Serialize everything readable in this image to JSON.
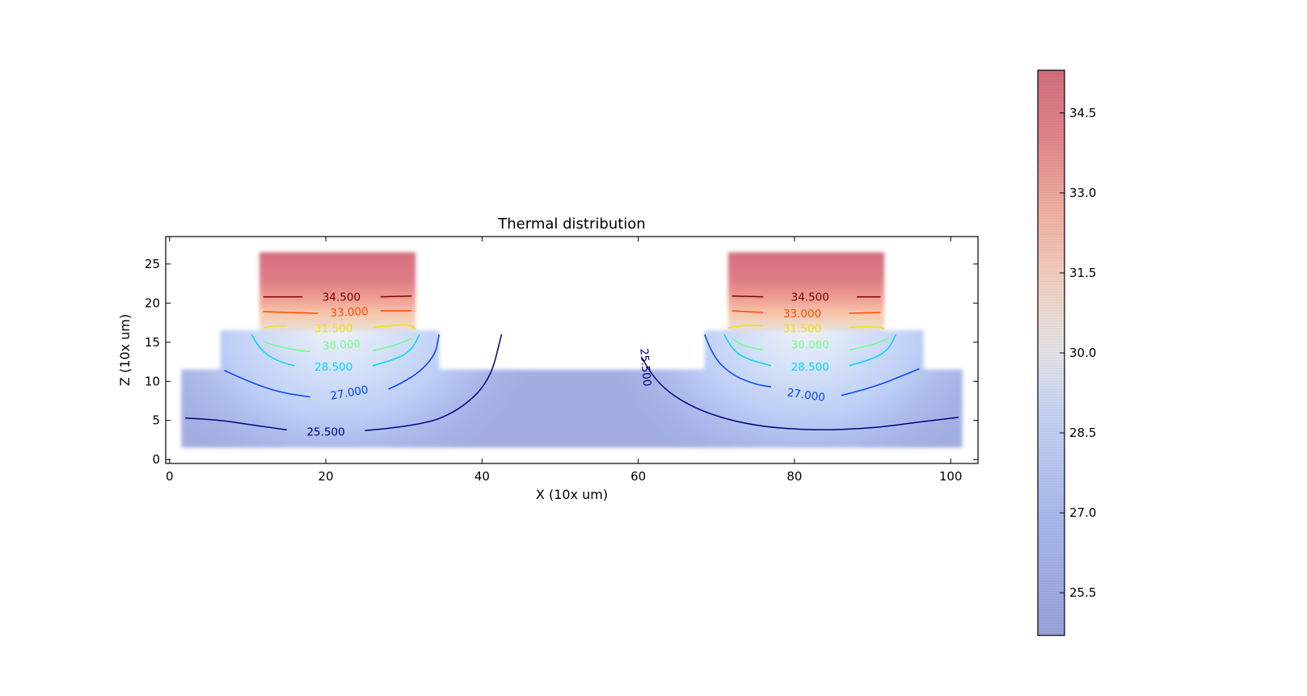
{
  "chart_data": {
    "type": "heatmap",
    "title": "Thermal distribution",
    "xlabel": "X (10x um)",
    "ylabel": "Z (10x um)",
    "xlim": [
      -0.5,
      103.5
    ],
    "ylim": [
      -0.5,
      28.5
    ],
    "xticks": [
      0,
      20,
      40,
      60,
      80,
      100
    ],
    "yticks": [
      0,
      5,
      10,
      15,
      20,
      25
    ],
    "colormap": "coolwarm",
    "colorbar": {
      "range": [
        24.7,
        35.3
      ],
      "ticks": [
        "25.5",
        "27.0",
        "28.5",
        "30.0",
        "31.5",
        "33.0",
        "34.5"
      ]
    },
    "geometry": {
      "substrate": {
        "x": [
          1.5,
          101.5
        ],
        "z": [
          1.5,
          11.5
        ]
      },
      "steps": [
        {
          "x": [
            6.5,
            34.5
          ],
          "z": [
            11.5,
            16.5
          ]
        },
        {
          "x": [
            68.5,
            96.5
          ],
          "z": [
            11.5,
            16.5
          ]
        }
      ],
      "sources": [
        {
          "x": [
            11.5,
            31.5
          ],
          "z": [
            16.5,
            26.5
          ]
        },
        {
          "x": [
            71.5,
            91.5
          ],
          "z": [
            16.5,
            26.5
          ]
        }
      ]
    },
    "contours": [
      {
        "level": 34.5,
        "label": "34.500",
        "color": "#7f0000",
        "paths": [
          [
            [
              12,
              20.8
            ],
            [
              17,
              20.8
            ]
          ],
          [
            [
              27,
              20.8
            ],
            [
              31,
              20.9
            ]
          ],
          [
            [
              72,
              20.9
            ],
            [
              76,
              20.8
            ]
          ],
          [
            [
              88,
              20.8
            ],
            [
              91,
              20.8
            ]
          ]
        ],
        "labels": [
          {
            "x": 22,
            "z": 20.8,
            "rot": 0
          },
          {
            "x": 82,
            "z": 20.8,
            "rot": 0
          }
        ]
      },
      {
        "level": 33.0,
        "label": "33.000",
        "color": "#ff4a00",
        "paths": [
          [
            [
              12,
              18.9
            ],
            [
              15,
              18.8
            ],
            [
              19,
              18.7
            ]
          ],
          [
            [
              27,
              19.0
            ],
            [
              31,
              19.0
            ]
          ],
          [
            [
              72,
              19.0
            ],
            [
              76,
              18.8
            ]
          ],
          [
            [
              87,
              18.7
            ],
            [
              91,
              18.8
            ]
          ]
        ],
        "labels": [
          {
            "x": 23,
            "z": 18.9,
            "rot": -3
          },
          {
            "x": 81,
            "z": 18.7,
            "rot": 0
          }
        ]
      },
      {
        "level": 31.5,
        "label": "31.500",
        "color": "#f2e400",
        "paths": [
          [
            [
              12,
              16.8
            ],
            [
              13,
              17.1
            ],
            [
              15,
              17.1
            ]
          ],
          [
            [
              26,
              16.9
            ],
            [
              29,
              17.2
            ],
            [
              31,
              17.2
            ],
            [
              31.5,
              16.6
            ]
          ],
          [
            [
              71.5,
              16.8
            ],
            [
              73,
              17.2
            ],
            [
              76,
              17.1
            ]
          ],
          [
            [
              87,
              16.9
            ],
            [
              89,
              17.0
            ],
            [
              91,
              16.9
            ],
            [
              91.5,
              16.7
            ]
          ]
        ],
        "labels": [
          {
            "x": 21,
            "z": 16.8,
            "rot": 0
          },
          {
            "x": 81,
            "z": 16.8,
            "rot": 0
          }
        ]
      },
      {
        "level": 30.0,
        "label": "30.000",
        "color": "#70ff86",
        "paths": [
          [
            [
              12,
              15.1
            ],
            [
              14,
              14.3
            ],
            [
              18,
              13.8
            ]
          ],
          [
            [
              26,
              13.9
            ],
            [
              29,
              14.6
            ],
            [
              31,
              15.5
            ]
          ],
          [
            [
              72,
              15.5
            ],
            [
              73,
              14.6
            ],
            [
              76,
              14.0
            ]
          ],
          [
            [
              87,
              14.0
            ],
            [
              90,
              14.6
            ],
            [
              92,
              15.5
            ]
          ]
        ],
        "labels": [
          {
            "x": 22,
            "z": 14.7,
            "rot": -3
          },
          {
            "x": 82,
            "z": 14.7,
            "rot": 0
          }
        ]
      },
      {
        "level": 28.5,
        "label": "28.500",
        "color": "#00d5ff",
        "paths": [
          [
            [
              10.5,
              16.0
            ],
            [
              11.5,
              14.0
            ],
            [
              14,
              12.5
            ],
            [
              16,
              12.0
            ]
          ],
          [
            [
              26,
              12.0
            ],
            [
              29,
              12.8
            ],
            [
              31,
              14.0
            ],
            [
              32,
              16.0
            ]
          ],
          [
            [
              71,
              16.0
            ],
            [
              72,
              14.0
            ],
            [
              74,
              12.8
            ],
            [
              77,
              12.0
            ]
          ],
          [
            [
              87,
              12.0
            ],
            [
              90,
              12.8
            ],
            [
              92,
              14.0
            ],
            [
              93,
              16.0
            ]
          ]
        ],
        "labels": [
          {
            "x": 21,
            "z": 11.9,
            "rot": 0
          },
          {
            "x": 82,
            "z": 11.9,
            "rot": 0
          }
        ]
      },
      {
        "level": 27.0,
        "label": "27.000",
        "color": "#0042ff",
        "paths": [
          [
            [
              7,
              11.4
            ],
            [
              10,
              10.0
            ],
            [
              14,
              8.6
            ],
            [
              18,
              8.0
            ]
          ],
          [
            [
              28,
              9.0
            ],
            [
              31,
              10.3
            ],
            [
              34,
              13.2
            ],
            [
              34.5,
              16.0
            ]
          ],
          [
            [
              68.5,
              16.0
            ],
            [
              69.5,
              13.2
            ],
            [
              72,
              10.8
            ],
            [
              75,
              9.6
            ],
            [
              77,
              9.3
            ]
          ],
          [
            [
              86,
              8.2
            ],
            [
              90,
              9.2
            ],
            [
              94,
              10.8
            ],
            [
              96,
              11.6
            ]
          ]
        ],
        "labels": [
          {
            "x": 23,
            "z": 8.6,
            "rot": -10
          },
          {
            "x": 81.5,
            "z": 8.3,
            "rot": 8
          }
        ]
      },
      {
        "level": 25.5,
        "label": "25.500",
        "color": "#00007f",
        "paths": [
          [
            [
              2,
              5.3
            ],
            [
              6,
              5.1
            ],
            [
              10,
              4.5
            ],
            [
              15,
              3.8
            ]
          ],
          [
            [
              25,
              3.7
            ],
            [
              32,
              4.3
            ],
            [
              37,
              6.2
            ],
            [
              41,
              10.0
            ],
            [
              42.5,
              16.0
            ]
          ],
          [
            [
              60.5,
              13.0
            ],
            [
              62,
              10.0
            ],
            [
              67,
              6.5
            ],
            [
              74,
              4.4
            ],
            [
              82,
              3.7
            ],
            [
              90,
              4.0
            ],
            [
              96,
              4.8
            ],
            [
              101,
              5.4
            ]
          ]
        ],
        "labels": [
          {
            "x": 20,
            "z": 3.6,
            "rot": 0
          },
          {
            "x": 61,
            "z": 11.8,
            "rot": 85
          }
        ]
      }
    ]
  }
}
